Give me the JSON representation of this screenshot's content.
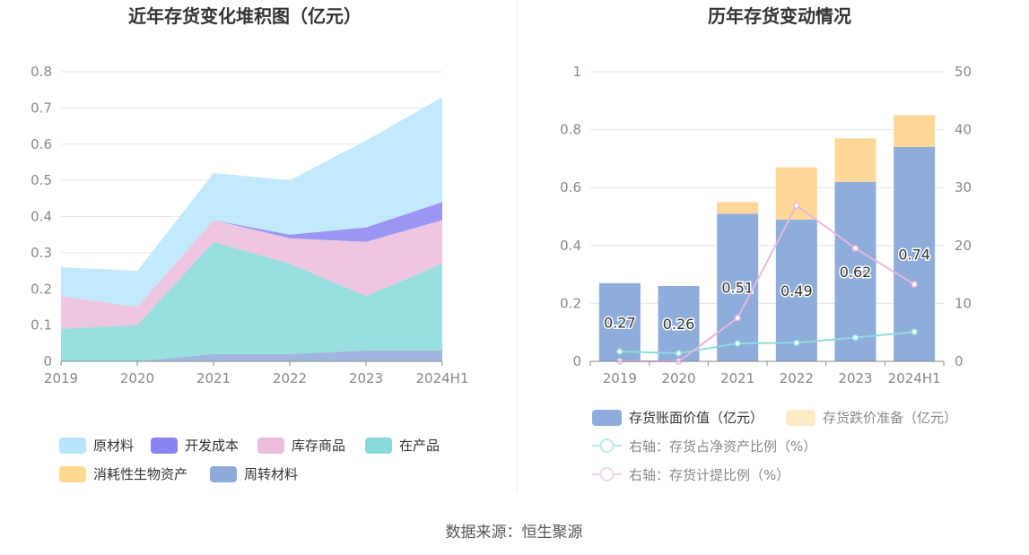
{
  "source": "数据来源：恒生聚源",
  "chart_data": [
    {
      "type": "area",
      "stacked": true,
      "title": "近年存货变化堆积图（亿元）",
      "categories": [
        "2019",
        "2020",
        "2021",
        "2022",
        "2023",
        "2024H1"
      ],
      "ylim": [
        0,
        0.8
      ],
      "yticks": [
        "0",
        "0.1",
        "0.2",
        "0.3",
        "0.4",
        "0.5",
        "0.6",
        "0.7",
        "0.8"
      ],
      "grid": true,
      "legend_position": "bottom",
      "series": [
        {
          "name": "周转材料",
          "color": "#8eaadb",
          "values": [
            0,
            0,
            0.02,
            0.02,
            0.03,
            0.03
          ]
        },
        {
          "name": "在产品",
          "color": "#87d9d9",
          "values": [
            0.09,
            0.1,
            0.31,
            0.25,
            0.15,
            0.24
          ]
        },
        {
          "name": "库存商品",
          "color": "#ebbcdc",
          "values": [
            0.09,
            0.05,
            0.06,
            0.07,
            0.15,
            0.12
          ]
        },
        {
          "name": "开发成本",
          "color": "#8a83f2",
          "values": [
            0,
            0,
            0,
            0.01,
            0.04,
            0.05
          ]
        },
        {
          "name": "原材料",
          "color": "#b9e5fb",
          "values": [
            0.08,
            0.1,
            0.13,
            0.15,
            0.24,
            0.29
          ]
        },
        {
          "name": "消耗性生物资产",
          "color": "#ffd990",
          "values": [
            0,
            0,
            0,
            0,
            0,
            0
          ]
        }
      ],
      "legend_order": [
        "原材料",
        "开发成本",
        "库存商品",
        "在产品",
        "消耗性生物资产",
        "周转材料"
      ]
    },
    {
      "type": "bar",
      "stacked": true,
      "title": "历年存货变动情况",
      "categories": [
        "2019",
        "2020",
        "2021",
        "2022",
        "2023",
        "2024H1"
      ],
      "ylim": [
        0,
        1
      ],
      "yticks": [
        "0",
        "0.2",
        "0.4",
        "0.6",
        "0.8",
        "1"
      ],
      "y2lim": [
        0,
        50
      ],
      "y2ticks": [
        "0",
        "10",
        "20",
        "30",
        "40",
        "50"
      ],
      "grid": true,
      "legend_position": "bottom",
      "bar_series": [
        {
          "name": "存货账面价值（亿元）",
          "color": "#8eaddb",
          "values": [
            0.27,
            0.26,
            0.51,
            0.49,
            0.62,
            0.74
          ],
          "labels": [
            "0.27",
            "0.26",
            "0.51",
            "0.49",
            "0.62",
            "0.74"
          ]
        },
        {
          "name": "存货跌价准备（亿元）",
          "color": "#ffd898",
          "values": [
            0,
            0,
            0.04,
            0.18,
            0.15,
            0.11
          ]
        }
      ],
      "line_series": [
        {
          "name": "右轴：存货占净资产比例（%）",
          "color": "#8fdcdc",
          "axis": "right",
          "values": [
            1.7,
            1.4,
            3.1,
            3.2,
            4.1,
            5.1
          ]
        },
        {
          "name": "右轴：存货计提比例（%）",
          "color": "#e9b6de",
          "axis": "right",
          "values": [
            0,
            0,
            7.5,
            26.9,
            19.5,
            13.3
          ]
        }
      ]
    }
  ]
}
